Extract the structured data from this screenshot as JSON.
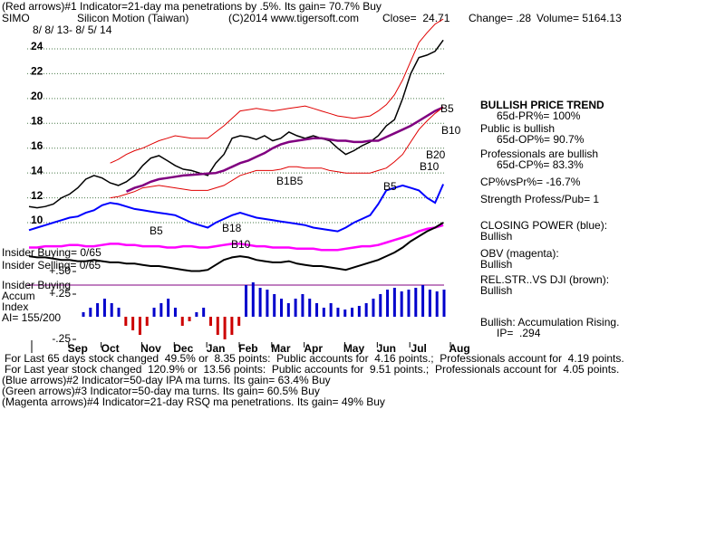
{
  "header": {
    "line1": "(Red arrows)#1 Indicator=21-day ma penetrations by .5%. Its gain= 70.7% Buy",
    "symbol": "SIMO",
    "company": "Silicon Motion (Taiwan)",
    "copyright": "(C)2014 www.tigersoft.com",
    "close": "Close=  24.71",
    "change": "Change= .28",
    "volume": "Volume= 5164.13",
    "dates": "8/ 8/ 13- 8/ 5/ 14"
  },
  "chart_data": [
    {
      "type": "line",
      "xlim": [
        0,
        53
      ],
      "ylim": [
        6,
        26.5
      ],
      "yticks": [
        10,
        12,
        14,
        16,
        18,
        20,
        22,
        24
      ],
      "grid": true,
      "xticks": [
        {
          "value": 6,
          "label": "Sep"
        },
        {
          "value": 10,
          "label": "Oct"
        },
        {
          "value": 15,
          "label": "Nov"
        },
        {
          "value": 19,
          "label": "Dec"
        },
        {
          "value": 23,
          "label": "Jan"
        },
        {
          "value": 27,
          "label": "Feb"
        },
        {
          "value": 31,
          "label": "Mar"
        },
        {
          "value": 35,
          "label": "Apr"
        },
        {
          "value": 40,
          "label": "May"
        },
        {
          "value": 44,
          "label": "Jun"
        },
        {
          "value": 48,
          "label": "Jul"
        },
        {
          "value": 53,
          "label": "Aug"
        }
      ],
      "series": [
        {
          "color": "#000000",
          "width": 1.5,
          "values": [
            11.3,
            11.2,
            11.3,
            11.5,
            12.0,
            12.3,
            12.8,
            13.5,
            13.8,
            13.6,
            13.2,
            13.0,
            13.3,
            13.8,
            14.6,
            15.2,
            15.4,
            15.0,
            14.6,
            14.3,
            14.2,
            14.0,
            13.8,
            14.8,
            15.5,
            16.8,
            17.0,
            16.9,
            16.7,
            17.0,
            16.6,
            16.8,
            17.3,
            17.0,
            16.8,
            17.0,
            16.8,
            16.6,
            16.0,
            15.5,
            15.8,
            16.2,
            16.5,
            17.0,
            17.8,
            18.3,
            20.0,
            22.0,
            23.3,
            23.5,
            23.8,
            24.71
          ]
        },
        {
          "color": "#800080",
          "width": 2.5,
          "values": [
            null,
            null,
            null,
            null,
            null,
            null,
            null,
            null,
            null,
            null,
            null,
            null,
            12.5,
            12.8,
            13.0,
            13.3,
            13.5,
            13.6,
            13.7,
            13.8,
            13.85,
            13.9,
            13.95,
            14.0,
            14.2,
            14.5,
            14.8,
            15.0,
            15.3,
            15.6,
            16.0,
            16.3,
            16.5,
            16.6,
            16.7,
            16.8,
            16.8,
            16.7,
            16.6,
            16.6,
            16.5,
            16.5,
            16.6,
            16.6,
            16.9,
            17.2,
            17.5,
            17.8,
            18.2,
            18.6,
            19.0,
            19.3
          ]
        },
        {
          "color": "#e00000",
          "width": 1,
          "values": [
            null,
            null,
            null,
            null,
            null,
            null,
            null,
            null,
            null,
            null,
            14.8,
            15.1,
            15.5,
            15.8,
            16.0,
            16.3,
            16.6,
            16.8,
            17.0,
            16.9,
            16.8,
            16.8,
            16.8,
            17.3,
            17.8,
            18.4,
            19.0,
            19.1,
            19.2,
            19.1,
            19.0,
            19.1,
            19.2,
            19.3,
            19.4,
            19.2,
            19.0,
            18.8,
            18.6,
            18.5,
            18.4,
            18.5,
            18.6,
            19.0,
            19.5,
            20.3,
            21.5,
            23.0,
            24.5,
            25.3,
            26.0,
            26.4
          ]
        },
        {
          "color": "#e00000",
          "width": 1,
          "values": [
            null,
            null,
            null,
            null,
            null,
            null,
            null,
            null,
            null,
            null,
            12.0,
            12.1,
            12.3,
            12.5,
            12.8,
            12.9,
            13.0,
            12.9,
            12.8,
            12.7,
            12.6,
            12.6,
            12.6,
            12.8,
            13.0,
            13.4,
            13.8,
            14.0,
            14.2,
            14.2,
            14.2,
            14.3,
            14.5,
            14.5,
            14.4,
            14.4,
            14.4,
            14.2,
            14.1,
            14.0,
            14.0,
            14.0,
            14.0,
            14.2,
            14.4,
            14.9,
            15.5,
            16.5,
            17.5,
            18.2,
            18.8,
            19.3
          ]
        },
        {
          "color": "#0000ff",
          "width": 2,
          "values": [
            9.4,
            9.6,
            9.8,
            10.0,
            10.2,
            10.4,
            10.5,
            10.8,
            11.0,
            11.4,
            11.6,
            11.5,
            11.3,
            11.1,
            11.0,
            10.9,
            10.8,
            10.7,
            10.6,
            10.3,
            10.0,
            9.8,
            9.6,
            10.0,
            10.3,
            10.6,
            10.8,
            10.6,
            10.4,
            10.3,
            10.2,
            10.1,
            10.0,
            9.9,
            9.8,
            9.6,
            9.5,
            9.4,
            9.3,
            9.6,
            10.0,
            10.3,
            10.6,
            11.5,
            12.6,
            12.8,
            13.0,
            12.8,
            12.6,
            12.0,
            11.6,
            13.1
          ]
        },
        {
          "color": "#ff00ff",
          "width": 2.5,
          "values": [
            8.0,
            8.0,
            8.1,
            8.1,
            8.1,
            8.2,
            8.2,
            8.1,
            8.1,
            8.2,
            8.3,
            8.3,
            8.2,
            8.2,
            8.1,
            8.1,
            8.1,
            8.0,
            8.0,
            8.1,
            8.1,
            8.0,
            8.0,
            8.1,
            8.2,
            8.3,
            8.3,
            8.2,
            8.1,
            8.1,
            8.0,
            8.0,
            8.0,
            7.9,
            7.9,
            7.9,
            7.8,
            7.8,
            7.8,
            7.9,
            8.0,
            8.1,
            8.1,
            8.2,
            8.4,
            8.6,
            8.8,
            9.0,
            9.3,
            9.5,
            9.6,
            9.8
          ]
        },
        {
          "color": "#000000",
          "width": 2,
          "values": [
            7.3,
            7.2,
            7.2,
            7.1,
            7.0,
            7.0,
            6.9,
            6.9,
            7.0,
            6.9,
            6.8,
            6.8,
            6.7,
            6.7,
            6.6,
            6.5,
            6.5,
            6.4,
            6.3,
            6.2,
            6.1,
            6.1,
            6.2,
            6.6,
            7.0,
            7.2,
            7.3,
            7.2,
            7.0,
            6.9,
            6.8,
            6.8,
            6.9,
            6.7,
            6.6,
            6.5,
            6.5,
            6.4,
            6.3,
            6.2,
            6.4,
            6.6,
            6.8,
            7.0,
            7.3,
            7.6,
            8.0,
            8.5,
            8.9,
            9.3,
            9.6,
            10.0
          ]
        }
      ],
      "signals": [
        "B5",
        "B18",
        "B10",
        "B1B5",
        "B5",
        "B5",
        "B10",
        "B20",
        "B10"
      ]
    },
    {
      "type": "bar",
      "ylim": [
        -0.3,
        0.5
      ],
      "color": "#0000cc",
      "negative_color": "#cc0000",
      "yticks": [
        {
          "value": 0.5,
          "label": "+.50"
        },
        {
          "value": 0.25,
          "label": "+.25"
        },
        {
          "value": -0.25,
          "label": "-.25"
        }
      ],
      "values": [
        0.05,
        0.1,
        0.15,
        0.2,
        0.15,
        0.1,
        -0.1,
        -0.15,
        -0.2,
        -0.1,
        0.1,
        0.15,
        0.2,
        0.1,
        -0.1,
        -0.05,
        0.05,
        0.1,
        -0.1,
        -0.2,
        -0.25,
        -0.2,
        -0.1,
        0.35,
        0.38,
        0.32,
        0.3,
        0.25,
        0.2,
        0.15,
        0.2,
        0.25,
        0.2,
        0.15,
        0.1,
        0.15,
        0.1,
        0.08,
        0.1,
        0.12,
        0.15,
        0.2,
        0.25,
        0.3,
        0.32,
        0.28,
        0.3,
        0.32,
        0.35,
        0.3,
        0.28,
        0.3
      ]
    }
  ],
  "left_labels": [
    "Insider Buying= 0/65",
    "Insider Selling= 0/65",
    "Insider Buying",
    "Accum",
    "Index",
    "AI= 155/200"
  ],
  "right_notes": [
    "BULLISH PRICE TREND",
    "65d-PR%= 100%",
    "Public is bullish",
    "65d-OP%= 90.7%",
    "Professionals are bullish",
    "65d-CP%= 83.3%",
    "CP%vsPr%= -16.7%",
    "Strength Profess/Pub= 1",
    "CLOSING POWER (blue):",
    "Bullish",
    "OBV (magenta):",
    "Bullish",
    "REL.STR..VS DJI (brown):",
    "Bullish",
    "Bullish: Accumulation Rising.",
    "IP=  .294"
  ],
  "footer": [
    "For Last 65 days stock changed  49.5% or  8.35 points:  Public accounts for  4.16 points.;  Professionals account for  4.19 points.",
    "For Last year stock changed  120.9% or  13.56 points:  Public accounts for  9.51 points.;  Professionals account for  4.05 points.",
    "(Blue arrows)#2 Indicator=50-day IPA ma turns. Its gain= 63.4% Buy",
    "(Green arrows)#3 Indicator=50-day ma turns. Its gain= 60.5% Buy",
    "(Magenta arrows)#4 Indicator=21-day RSQ ma penetrations. Its gain= 49% Buy"
  ]
}
